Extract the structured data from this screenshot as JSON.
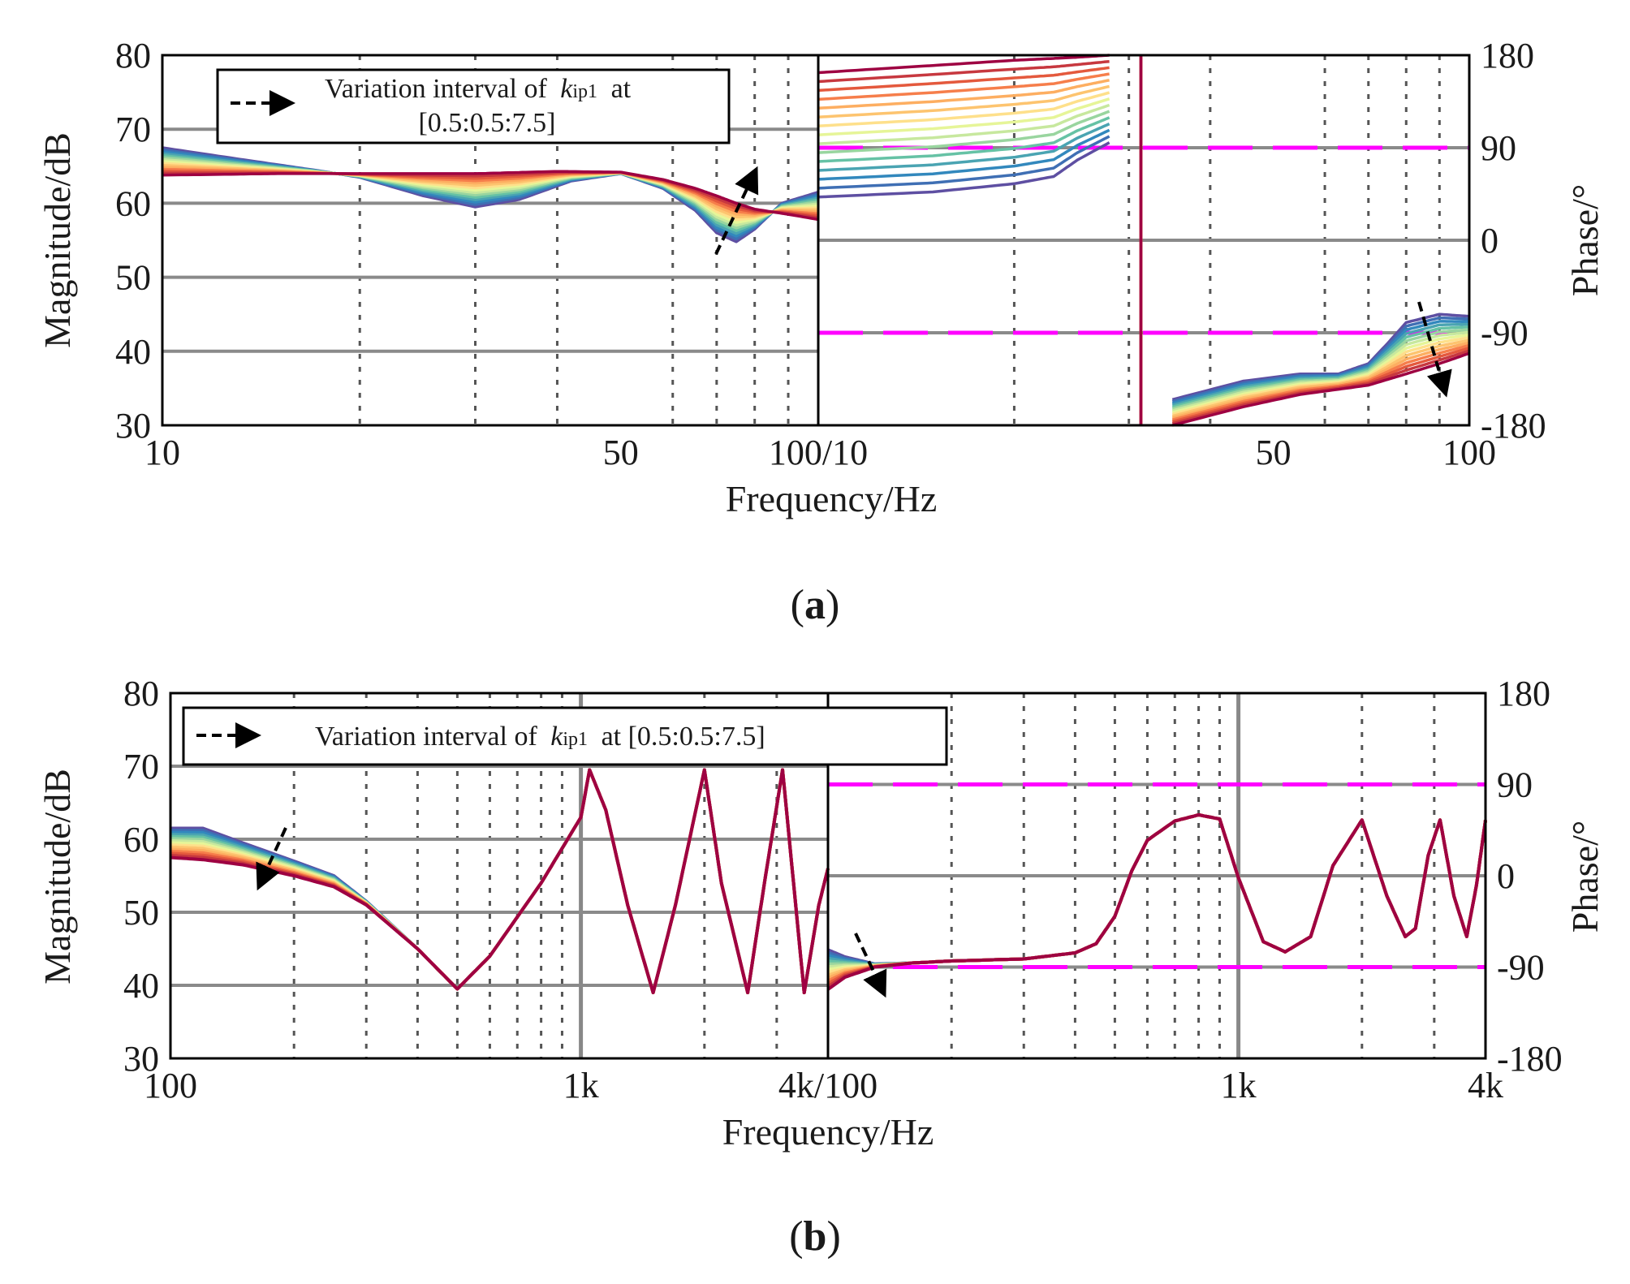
{
  "chart_data": [
    {
      "id": "a",
      "type": "line",
      "panel_label": "(a)",
      "panel_letter": "a",
      "xlabel": "Frequency/Hz",
      "left": {
        "ylabel": "Magnitude/dB",
        "xscale": "log",
        "xlim": [
          10,
          100
        ],
        "ylim": [
          30,
          80
        ],
        "xticks": [
          {
            "v": 10,
            "label": "10"
          },
          {
            "v": 50,
            "label": "50"
          },
          {
            "v": 100,
            "label": "100/10"
          }
        ],
        "yticks": [
          {
            "v": 30,
            "label": "30"
          },
          {
            "v": 40,
            "label": "40"
          },
          {
            "v": 50,
            "label": "50"
          },
          {
            "v": 60,
            "label": "60"
          },
          {
            "v": 70,
            "label": "70"
          },
          {
            "v": 80,
            "label": "80"
          }
        ],
        "grid_major_y": [
          40,
          50,
          60,
          70
        ],
        "grid_minor_x": [
          20,
          30,
          40,
          60,
          70,
          80,
          90
        ]
      },
      "right": {
        "ylabel": "Phase/°",
        "xscale": "log",
        "xlim": [
          10,
          100
        ],
        "ylim": [
          -180,
          180
        ],
        "xticks": [
          {
            "v": 50,
            "label": "50"
          },
          {
            "v": 100,
            "label": "100"
          }
        ],
        "yticks": [
          {
            "v": -180,
            "label": "-180"
          },
          {
            "v": -90,
            "label": "-90"
          },
          {
            "v": 0,
            "label": "0"
          },
          {
            "v": 90,
            "label": "90"
          },
          {
            "v": 180,
            "label": "180"
          }
        ],
        "grid_major_y": [
          -90,
          0,
          90
        ],
        "grid_minor_x": [
          20,
          30,
          40,
          60,
          70,
          80,
          90
        ],
        "reference_lines": [
          90,
          -90
        ],
        "reference_color": "#ff00ff"
      },
      "legend": {
        "arrow_label": "Variation interval of",
        "param_symbol": "k",
        "param_subscript": "ip1",
        "interval": "at [0.5:0.5:7.5]",
        "interval_line1": "at",
        "interval_line2": "[0.5:0.5:7.5]",
        "position": "top-left"
      },
      "series_count": 15,
      "parameter_values": [
        0.5,
        1.0,
        1.5,
        2.0,
        2.5,
        3.0,
        3.5,
        4.0,
        4.5,
        5.0,
        5.5,
        6.0,
        6.5,
        7.0,
        7.5
      ],
      "magnitude_first": {
        "name": "kip1=0.5",
        "x": [
          10,
          13,
          17,
          20,
          25,
          30,
          35,
          42,
          50,
          58,
          65,
          70,
          75,
          80,
          88,
          100
        ],
        "y": [
          67.5,
          66,
          64.5,
          63.5,
          61,
          59.5,
          60.5,
          63,
          64,
          62,
          59,
          56,
          54.8,
          56.5,
          60,
          61.5
        ]
      },
      "magnitude_last": {
        "name": "kip1=7.5",
        "x": [
          10,
          15,
          20,
          30,
          40,
          50,
          58,
          65,
          70,
          75,
          80,
          90,
          100
        ],
        "y": [
          63.8,
          64,
          64,
          64,
          64.3,
          64.2,
          63.2,
          62,
          61,
          60,
          59.2,
          58.5,
          57.8
        ]
      },
      "phase_first": {
        "name": "kip1=0.5",
        "x": [
          10,
          15,
          20,
          23,
          25,
          28,
          35,
          45,
          55,
          63,
          70,
          75,
          80,
          90,
          100
        ],
        "y": [
          42,
          47,
          55,
          62,
          78,
          95,
          -155,
          -137,
          -130,
          -130,
          -120,
          -100,
          -80,
          -72,
          -74
        ]
      },
      "phase_last": {
        "name": "kip1=7.5",
        "x": [
          10,
          15,
          20,
          25,
          28,
          35,
          45,
          55,
          63,
          70,
          80,
          90,
          100
        ],
        "y": [
          163,
          170,
          175,
          178,
          180,
          -180,
          -162,
          -150,
          -145,
          -141,
          -130,
          -120,
          -110
        ]
      }
    },
    {
      "id": "b",
      "type": "line",
      "panel_label": "(b)",
      "panel_letter": "b",
      "xlabel": "Frequency/Hz",
      "left": {
        "ylabel": "Magnitude/dB",
        "xscale": "log",
        "xlim": [
          100,
          4000
        ],
        "ylim": [
          30,
          80
        ],
        "xticks": [
          {
            "v": 100,
            "label": "100"
          },
          {
            "v": 1000,
            "label": "1k"
          },
          {
            "v": 4000,
            "label": "4k/100"
          }
        ],
        "yticks": [
          {
            "v": 30,
            "label": "30"
          },
          {
            "v": 40,
            "label": "40"
          },
          {
            "v": 50,
            "label": "50"
          },
          {
            "v": 60,
            "label": "60"
          },
          {
            "v": 70,
            "label": "70"
          },
          {
            "v": 80,
            "label": "80"
          }
        ],
        "grid_major_y": [
          40,
          50,
          60,
          70
        ],
        "grid_major_x": [
          1000
        ],
        "grid_minor_x": [
          200,
          300,
          400,
          500,
          600,
          700,
          800,
          900,
          2000,
          3000
        ]
      },
      "right": {
        "ylabel": "Phase/°",
        "xscale": "log",
        "xlim": [
          100,
          4000
        ],
        "ylim": [
          -180,
          180
        ],
        "xticks": [
          {
            "v": 1000,
            "label": "1k"
          },
          {
            "v": 4000,
            "label": "4k"
          }
        ],
        "yticks": [
          {
            "v": -180,
            "label": "-180"
          },
          {
            "v": -90,
            "label": "-90"
          },
          {
            "v": 0,
            "label": "0"
          },
          {
            "v": 90,
            "label": "90"
          },
          {
            "v": 180,
            "label": "180"
          }
        ],
        "grid_major_y": [
          -90,
          0,
          90
        ],
        "grid_major_x": [
          1000
        ],
        "grid_minor_x": [
          200,
          300,
          400,
          500,
          600,
          700,
          800,
          900,
          2000,
          3000
        ],
        "reference_lines": [
          90,
          -90
        ],
        "reference_color": "#ff00ff"
      },
      "legend": {
        "arrow_label": "Variation interval of",
        "param_symbol": "k",
        "param_subscript": "ip1",
        "interval": "at [0.5:0.5:7.5]",
        "position": "top-left"
      },
      "series_count": 15,
      "parameter_values": [
        0.5,
        1.0,
        1.5,
        2.0,
        2.5,
        3.0,
        3.5,
        4.0,
        4.5,
        5.0,
        5.5,
        6.0,
        6.5,
        7.0,
        7.5
      ],
      "magnitude_first": {
        "name": "kip1=0.5",
        "x": [
          100,
          120,
          150,
          200,
          250,
          300,
          400,
          500
        ],
        "y": [
          61.5,
          61.5,
          59.5,
          57,
          55,
          51.5,
          45,
          39.5
        ]
      },
      "magnitude_last": {
        "name": "kip1=7.5",
        "x": [
          100,
          120,
          150,
          200,
          250,
          300,
          400,
          500
        ],
        "y": [
          57.5,
          57.2,
          56.5,
          55,
          53.5,
          51,
          45,
          39.5
        ]
      },
      "magnitude_common": {
        "x": [
          500,
          600,
          800,
          1000,
          1050,
          1150,
          1300,
          1500,
          1700,
          2000,
          2200,
          2550,
          2800,
          3100,
          3500,
          3800,
          4000
        ],
        "y": [
          39.5,
          44,
          54,
          63,
          69.5,
          64,
          51,
          39,
          51,
          69.5,
          54,
          39,
          54,
          69.5,
          39,
          51,
          56
        ]
      },
      "phase_first": {
        "name": "kip1=0.5",
        "x": [
          100,
          110,
          130,
          160,
          200
        ],
        "y": [
          -73,
          -80,
          -87,
          -86,
          -84
        ]
      },
      "phase_last": {
        "name": "kip1=7.5",
        "x": [
          100,
          110,
          130,
          160,
          200
        ],
        "y": [
          -112,
          -100,
          -90,
          -86,
          -84
        ]
      },
      "phase_common": {
        "x": [
          200,
          300,
          400,
          450,
          500,
          550,
          600,
          700,
          800,
          900,
          1000,
          1150,
          1300,
          1500,
          1700,
          2000,
          2300,
          2550,
          2700,
          2900,
          3100,
          3350,
          3600,
          3800,
          4000
        ],
        "y": [
          -84,
          -82,
          -76,
          -67,
          -40,
          5,
          35,
          54,
          60,
          56,
          -2,
          -65,
          -75,
          -60,
          10,
          55,
          -20,
          -60,
          -52,
          20,
          55,
          -20,
          -60,
          -10,
          55
        ]
      }
    }
  ]
}
